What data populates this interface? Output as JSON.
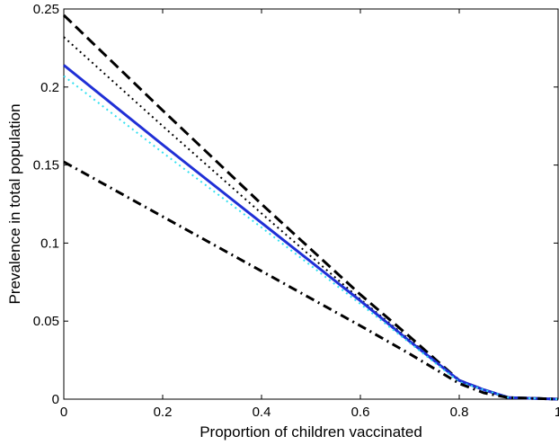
{
  "chart_data": {
    "type": "line",
    "xlabel": "Proportion of children vaccinated",
    "ylabel": "Prevalence in total population",
    "xlim": [
      0,
      1
    ],
    "ylim": [
      0,
      0.25
    ],
    "xticks": [
      "0",
      "0.2",
      "0.4",
      "0.6",
      "0.8",
      "1"
    ],
    "yticks": [
      "0",
      "0.05",
      "0.1",
      "0.15",
      "0.2",
      "0.25"
    ],
    "grid": false,
    "legend": "none",
    "series": [
      {
        "style": "dashed",
        "color": "#000000",
        "x": [
          0,
          0.2,
          0.4,
          0.6,
          0.7,
          0.8,
          0.85,
          0.9,
          1.0
        ],
        "y": [
          0.246,
          0.185,
          0.125,
          0.067,
          0.04,
          0.012,
          0.006,
          0.001,
          0
        ]
      },
      {
        "style": "dotted",
        "color": "#000000",
        "x": [
          0,
          0.2,
          0.4,
          0.6,
          0.7,
          0.8,
          0.85,
          0.9,
          1.0
        ],
        "y": [
          0.232,
          0.175,
          0.119,
          0.064,
          0.038,
          0.012,
          0.006,
          0.001,
          0
        ]
      },
      {
        "style": "solid",
        "color": "#1f2fd6",
        "x": [
          0,
          0.2,
          0.4,
          0.6,
          0.7,
          0.8,
          0.85,
          0.9,
          1.0
        ],
        "y": [
          0.214,
          0.163,
          0.113,
          0.063,
          0.037,
          0.012,
          0.006,
          0.001,
          0
        ]
      },
      {
        "style": "dotted",
        "color": "#33e0f0",
        "x": [
          0,
          0.2,
          0.4,
          0.6,
          0.7,
          0.8,
          0.85,
          0.9,
          1.0
        ],
        "y": [
          0.207,
          0.158,
          0.11,
          0.061,
          0.036,
          0.011,
          0.006,
          0.001,
          0
        ]
      },
      {
        "style": "dashdot",
        "color": "#000000",
        "x": [
          0,
          0.2,
          0.4,
          0.6,
          0.7,
          0.8,
          0.85,
          0.9,
          1.0
        ],
        "y": [
          0.152,
          0.117,
          0.082,
          0.047,
          0.029,
          0.01,
          0.004,
          0.001,
          0
        ]
      }
    ]
  }
}
